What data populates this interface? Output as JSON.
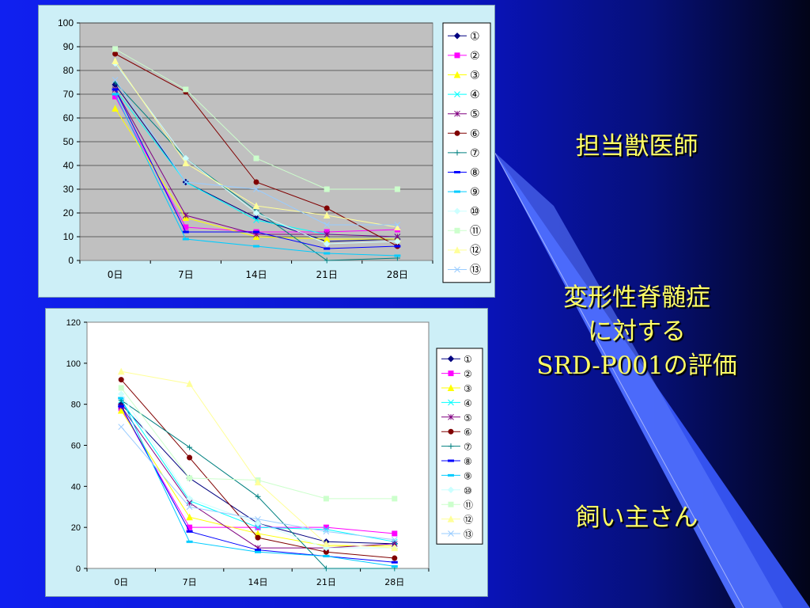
{
  "slide": {
    "veterinarian_label": "担当獣医師",
    "eval_line1": "変形性脊髄症",
    "eval_line2": "に対する",
    "eval_line3": "SRD-P001の評価",
    "owner_label": "飼い主さん"
  },
  "chart_data": [
    {
      "type": "line",
      "plot_background": "#c0c0c0",
      "categories": [
        "0日",
        "7日",
        "14日",
        "21日",
        "28日"
      ],
      "ylim": [
        0,
        100
      ],
      "yticks": [
        0,
        10,
        20,
        30,
        40,
        50,
        60,
        70,
        80,
        90,
        100
      ],
      "grid": true,
      "legend": "right",
      "series": [
        {
          "name": "①",
          "color": "#000080",
          "marker": "diamond",
          "values": [
            74,
            33,
            18,
            8,
            9
          ]
        },
        {
          "name": "②",
          "color": "#ff00ff",
          "marker": "square",
          "values": [
            69,
            14,
            12,
            12,
            13
          ]
        },
        {
          "name": "③",
          "color": "#ffff00",
          "marker": "triangle",
          "values": [
            64,
            18,
            10,
            9,
            9
          ]
        },
        {
          "name": "④",
          "color": "#00ffff",
          "marker": "x",
          "values": [
            72,
            33,
            17,
            11,
            10
          ]
        },
        {
          "name": "⑤",
          "color": "#800080",
          "marker": "star",
          "values": [
            72,
            19,
            11,
            11,
            10
          ]
        },
        {
          "name": "⑥",
          "color": "#800000",
          "marker": "circle",
          "values": [
            87,
            71,
            33,
            22,
            6
          ]
        },
        {
          "name": "⑦",
          "color": "#008080",
          "marker": "plus",
          "values": [
            75,
            43,
            21,
            0,
            1
          ]
        },
        {
          "name": "⑧",
          "color": "#0000ff",
          "marker": "dash",
          "values": [
            72,
            12,
            12,
            5,
            6
          ]
        },
        {
          "name": "⑨",
          "color": "#00ccff",
          "marker": "dash",
          "values": [
            70,
            9,
            6,
            3,
            2
          ]
        },
        {
          "name": "⑩",
          "color": "#ccffff",
          "marker": "diamond",
          "values": [
            83,
            43,
            20,
            7,
            8
          ]
        },
        {
          "name": "⑪",
          "color": "#ccffcc",
          "marker": "square",
          "values": [
            89,
            72,
            43,
            30,
            30
          ]
        },
        {
          "name": "⑫",
          "color": "#ffff99",
          "marker": "triangle",
          "values": [
            84,
            41,
            23,
            19,
            14
          ]
        },
        {
          "name": "⑬",
          "color": "#99ccff",
          "marker": "x",
          "values": [
            76,
            33,
            30,
            15,
            15
          ]
        }
      ]
    },
    {
      "type": "line",
      "plot_background": "#ffffff",
      "categories": [
        "0日",
        "7日",
        "14日",
        "21日",
        "28日"
      ],
      "ylim": [
        0,
        120
      ],
      "yticks": [
        0,
        20,
        40,
        60,
        80,
        100,
        120
      ],
      "grid": false,
      "legend": "right",
      "series": [
        {
          "name": "①",
          "color": "#000080",
          "marker": "diamond",
          "values": [
            80,
            44,
            22,
            13,
            12
          ]
        },
        {
          "name": "②",
          "color": "#ff00ff",
          "marker": "square",
          "values": [
            78,
            20,
            20,
            20,
            17
          ]
        },
        {
          "name": "③",
          "color": "#ffff00",
          "marker": "triangle",
          "values": [
            77,
            25,
            17,
            11,
            11
          ]
        },
        {
          "name": "④",
          "color": "#00ffff",
          "marker": "x",
          "values": [
            82,
            33,
            20,
            19,
            13
          ]
        },
        {
          "name": "⑤",
          "color": "#800080",
          "marker": "star",
          "values": [
            79,
            32,
            10,
            10,
            12
          ]
        },
        {
          "name": "⑥",
          "color": "#800000",
          "marker": "circle",
          "values": [
            92,
            54,
            15,
            8,
            5
          ]
        },
        {
          "name": "⑦",
          "color": "#008080",
          "marker": "plus",
          "values": [
            82,
            59,
            35,
            0,
            0
          ]
        },
        {
          "name": "⑧",
          "color": "#0000ff",
          "marker": "dash",
          "values": [
            79,
            18,
            9,
            6,
            3
          ]
        },
        {
          "name": "⑨",
          "color": "#00ccff",
          "marker": "dash",
          "values": [
            83,
            13,
            8,
            6,
            1
          ]
        },
        {
          "name": "⑩",
          "color": "#ccffff",
          "marker": "diamond",
          "values": [
            85,
            34,
            22,
            10,
            10
          ]
        },
        {
          "name": "⑪",
          "color": "#ccffcc",
          "marker": "square",
          "values": [
            88,
            44,
            43,
            34,
            34
          ]
        },
        {
          "name": "⑫",
          "color": "#ffff99",
          "marker": "triangle",
          "values": [
            96,
            90,
            42,
            12,
            10
          ]
        },
        {
          "name": "⑬",
          "color": "#99ccff",
          "marker": "x",
          "values": [
            69,
            30,
            24,
            18,
            14
          ]
        }
      ]
    }
  ]
}
